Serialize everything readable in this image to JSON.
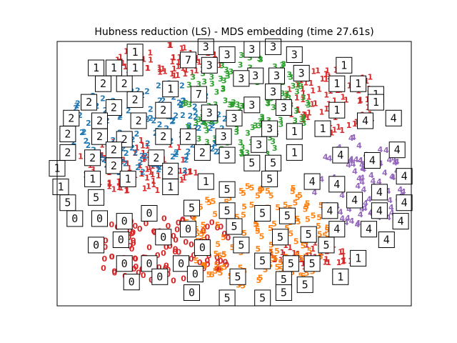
{
  "chart_data": {
    "type": "scatter",
    "title": "Hubness reduction (LS) - MDS embedding (time 27.61s)",
    "xlabel": "",
    "ylabel": "",
    "xlim": [
      0,
      1
    ],
    "ylim": [
      0,
      1
    ],
    "grid": false,
    "axis_ticks": false,
    "colors": {
      "0": "#d62728",
      "1": "#d62728",
      "2": "#1f77b4",
      "3": "#2ca02c",
      "4": "#9467bd",
      "5": "#ff7f0e"
    },
    "clusters": [
      {
        "digit": "0",
        "cx": 0.3,
        "cy": 0.21,
        "rx": 0.22,
        "ry": 0.13
      },
      {
        "digit": "1",
        "cx": 0.22,
        "cy": 0.52,
        "rx": 0.18,
        "ry": 0.1
      },
      {
        "digit": "1",
        "cx": 0.32,
        "cy": 0.92,
        "rx": 0.16,
        "ry": 0.06
      },
      {
        "digit": "1",
        "cx": 0.78,
        "cy": 0.78,
        "rx": 0.14,
        "ry": 0.14
      },
      {
        "digit": "1",
        "cx": 0.72,
        "cy": 0.18,
        "rx": 0.12,
        "ry": 0.05
      },
      {
        "digit": "2",
        "cx": 0.26,
        "cy": 0.66,
        "rx": 0.24,
        "ry": 0.18
      },
      {
        "digit": "3",
        "cx": 0.53,
        "cy": 0.75,
        "rx": 0.18,
        "ry": 0.2
      },
      {
        "digit": "4",
        "cx": 0.85,
        "cy": 0.45,
        "rx": 0.13,
        "ry": 0.18
      },
      {
        "digit": "5",
        "cx": 0.57,
        "cy": 0.26,
        "rx": 0.22,
        "ry": 0.2
      }
    ],
    "thumbnails": [
      {
        "digit": "1",
        "x": 0.22,
        "y": 0.96
      },
      {
        "digit": "3",
        "x": 0.42,
        "y": 0.98
      },
      {
        "digit": "3",
        "x": 0.55,
        "y": 0.97
      },
      {
        "digit": "3",
        "x": 0.61,
        "y": 0.98
      },
      {
        "digit": "3",
        "x": 0.48,
        "y": 0.95
      },
      {
        "digit": "3",
        "x": 0.67,
        "y": 0.95
      },
      {
        "digit": "7",
        "x": 0.37,
        "y": 0.93
      },
      {
        "digit": "1",
        "x": 0.22,
        "y": 0.9
      },
      {
        "digit": "3",
        "x": 0.43,
        "y": 0.91
      },
      {
        "digit": "3",
        "x": 0.69,
        "y": 0.88
      },
      {
        "digit": "3",
        "x": 0.56,
        "y": 0.87
      },
      {
        "digit": "1",
        "x": 0.81,
        "y": 0.91
      },
      {
        "digit": "1",
        "x": 0.11,
        "y": 0.9
      },
      {
        "digit": "1",
        "x": 0.16,
        "y": 0.9
      },
      {
        "digit": "3",
        "x": 0.62,
        "y": 0.87
      },
      {
        "digit": "2",
        "x": 0.13,
        "y": 0.84
      },
      {
        "digit": "2",
        "x": 0.19,
        "y": 0.84
      },
      {
        "digit": "1",
        "x": 0.32,
        "y": 0.82
      },
      {
        "digit": "3",
        "x": 0.52,
        "y": 0.86
      },
      {
        "digit": "3",
        "x": 0.61,
        "y": 0.81
      },
      {
        "digit": "1",
        "x": 0.79,
        "y": 0.84
      },
      {
        "digit": "1",
        "x": 0.85,
        "y": 0.84
      },
      {
        "digit": "1",
        "x": 0.9,
        "y": 0.8
      },
      {
        "digit": "2",
        "x": 0.22,
        "y": 0.78
      },
      {
        "digit": "7",
        "x": 0.4,
        "y": 0.8
      },
      {
        "digit": "3",
        "x": 0.55,
        "y": 0.76
      },
      {
        "digit": "3",
        "x": 0.64,
        "y": 0.75
      },
      {
        "digit": "1",
        "x": 0.79,
        "y": 0.74
      },
      {
        "digit": "1",
        "x": 0.9,
        "y": 0.77
      },
      {
        "digit": "2",
        "x": 0.09,
        "y": 0.77
      },
      {
        "digit": "2",
        "x": 0.16,
        "y": 0.75
      },
      {
        "digit": "2",
        "x": 0.3,
        "y": 0.74
      },
      {
        "digit": "3",
        "x": 0.43,
        "y": 0.73
      },
      {
        "digit": "2",
        "x": 0.04,
        "y": 0.71
      },
      {
        "digit": "2",
        "x": 0.12,
        "y": 0.7
      },
      {
        "digit": "2",
        "x": 0.23,
        "y": 0.7
      },
      {
        "digit": "3",
        "x": 0.5,
        "y": 0.71
      },
      {
        "digit": "3",
        "x": 0.6,
        "y": 0.67
      },
      {
        "digit": "1",
        "x": 0.67,
        "y": 0.66
      },
      {
        "digit": "1",
        "x": 0.75,
        "y": 0.67
      },
      {
        "digit": "4",
        "x": 0.87,
        "y": 0.7
      },
      {
        "digit": "4",
        "x": 0.95,
        "y": 0.71
      },
      {
        "digit": "2",
        "x": 0.03,
        "y": 0.65
      },
      {
        "digit": "2",
        "x": 0.12,
        "y": 0.64
      },
      {
        "digit": "2",
        "x": 0.3,
        "y": 0.64
      },
      {
        "digit": "2",
        "x": 0.37,
        "y": 0.64
      },
      {
        "digit": "3",
        "x": 0.47,
        "y": 0.64
      },
      {
        "digit": "2",
        "x": 0.19,
        "y": 0.63
      },
      {
        "digit": "3",
        "x": 0.57,
        "y": 0.61
      },
      {
        "digit": "1",
        "x": 0.67,
        "y": 0.58
      },
      {
        "digit": "4",
        "x": 0.8,
        "y": 0.57
      },
      {
        "digit": "4",
        "x": 0.96,
        "y": 0.59
      },
      {
        "digit": "2",
        "x": 0.03,
        "y": 0.58
      },
      {
        "digit": "2",
        "x": 0.1,
        "y": 0.56
      },
      {
        "digit": "2",
        "x": 0.16,
        "y": 0.59
      },
      {
        "digit": "2",
        "x": 0.28,
        "y": 0.56
      },
      {
        "digit": "2",
        "x": 0.41,
        "y": 0.58
      },
      {
        "digit": "3",
        "x": 0.48,
        "y": 0.57
      },
      {
        "digit": "5",
        "x": 0.55,
        "y": 0.54
      },
      {
        "digit": "5",
        "x": 0.61,
        "y": 0.54
      },
      {
        "digit": "4",
        "x": 0.89,
        "y": 0.55
      },
      {
        "digit": "1",
        "x": 0.0,
        "y": 0.52
      },
      {
        "digit": "2",
        "x": 0.16,
        "y": 0.53
      },
      {
        "digit": "2",
        "x": 0.32,
        "y": 0.51
      },
      {
        "digit": "4",
        "x": 0.98,
        "y": 0.49
      },
      {
        "digit": "1",
        "x": 0.01,
        "y": 0.45
      },
      {
        "digit": "1",
        "x": 0.1,
        "y": 0.48
      },
      {
        "digit": "1",
        "x": 0.2,
        "y": 0.48
      },
      {
        "digit": "1",
        "x": 0.42,
        "y": 0.47
      },
      {
        "digit": "5",
        "x": 0.6,
        "y": 0.48
      },
      {
        "digit": "4",
        "x": 0.72,
        "y": 0.47
      },
      {
        "digit": "4",
        "x": 0.79,
        "y": 0.46
      },
      {
        "digit": "4",
        "x": 0.91,
        "y": 0.43
      },
      {
        "digit": "1",
        "x": 0.32,
        "y": 0.45
      },
      {
        "digit": "5",
        "x": 0.48,
        "y": 0.44
      },
      {
        "digit": "5",
        "x": 0.11,
        "y": 0.41
      },
      {
        "digit": "4",
        "x": 0.84,
        "y": 0.4
      },
      {
        "digit": "4",
        "x": 0.98,
        "y": 0.39
      },
      {
        "digit": "5",
        "x": 0.03,
        "y": 0.39
      },
      {
        "digit": "5",
        "x": 0.38,
        "y": 0.37
      },
      {
        "digit": "5",
        "x": 0.48,
        "y": 0.36
      },
      {
        "digit": "4",
        "x": 0.77,
        "y": 0.36
      },
      {
        "digit": "4",
        "x": 0.91,
        "y": 0.36
      },
      {
        "digit": "0",
        "x": 0.26,
        "y": 0.35
      },
      {
        "digit": "5",
        "x": 0.58,
        "y": 0.35
      },
      {
        "digit": "5",
        "x": 0.65,
        "y": 0.34
      },
      {
        "digit": "0",
        "x": 0.05,
        "y": 0.33
      },
      {
        "digit": "0",
        "x": 0.12,
        "y": 0.33
      },
      {
        "digit": "0",
        "x": 0.19,
        "y": 0.32
      },
      {
        "digit": "4",
        "x": 0.79,
        "y": 0.29
      },
      {
        "digit": "4",
        "x": 0.88,
        "y": 0.29
      },
      {
        "digit": "4",
        "x": 0.97,
        "y": 0.32
      },
      {
        "digit": "0",
        "x": 0.37,
        "y": 0.29
      },
      {
        "digit": "5",
        "x": 0.5,
        "y": 0.3
      },
      {
        "digit": "5",
        "x": 0.71,
        "y": 0.27
      },
      {
        "digit": "0",
        "x": 0.18,
        "y": 0.25
      },
      {
        "digit": "0",
        "x": 0.3,
        "y": 0.26
      },
      {
        "digit": "5",
        "x": 0.63,
        "y": 0.26
      },
      {
        "digit": "4",
        "x": 0.93,
        "y": 0.25
      },
      {
        "digit": "0",
        "x": 0.11,
        "y": 0.23
      },
      {
        "digit": "0",
        "x": 0.41,
        "y": 0.22
      },
      {
        "digit": "5",
        "x": 0.52,
        "y": 0.23
      },
      {
        "digit": "5",
        "x": 0.76,
        "y": 0.23
      },
      {
        "digit": "1",
        "x": 0.85,
        "y": 0.18
      },
      {
        "digit": "0",
        "x": 0.19,
        "y": 0.16
      },
      {
        "digit": "0",
        "x": 0.26,
        "y": 0.16
      },
      {
        "digit": "0",
        "x": 0.35,
        "y": 0.16
      },
      {
        "digit": "5",
        "x": 0.58,
        "y": 0.17
      },
      {
        "digit": "5",
        "x": 0.66,
        "y": 0.16
      },
      {
        "digit": "5",
        "x": 0.72,
        "y": 0.16
      },
      {
        "digit": "0",
        "x": 0.29,
        "y": 0.11
      },
      {
        "digit": "0",
        "x": 0.39,
        "y": 0.12
      },
      {
        "digit": "5",
        "x": 0.51,
        "y": 0.11
      },
      {
        "digit": "5",
        "x": 0.64,
        "y": 0.1
      },
      {
        "digit": "1",
        "x": 0.8,
        "y": 0.11
      },
      {
        "digit": "0",
        "x": 0.21,
        "y": 0.09
      },
      {
        "digit": "5",
        "x": 0.7,
        "y": 0.08
      },
      {
        "digit": "0",
        "x": 0.38,
        "y": 0.05
      },
      {
        "digit": "5",
        "x": 0.48,
        "y": 0.03
      },
      {
        "digit": "5",
        "x": 0.58,
        "y": 0.03
      },
      {
        "digit": "5",
        "x": 0.64,
        "y": 0.05
      }
    ]
  }
}
